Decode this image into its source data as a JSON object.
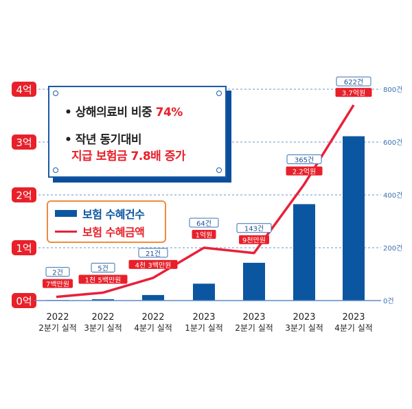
{
  "chart_data": {
    "type": "bar+line",
    "categories": [
      [
        "2022",
        "2분기 실적"
      ],
      [
        "2022",
        "3분기 실적"
      ],
      [
        "2022",
        "4분기 실적"
      ],
      [
        "2023",
        "1분기 실적"
      ],
      [
        "2023",
        "2분기 실적"
      ],
      [
        "2023",
        "3분기 실적"
      ],
      [
        "2023",
        "4분기 실적"
      ]
    ],
    "series": [
      {
        "name": "보험 수혜건수",
        "type": "bar",
        "axis": "right",
        "values": [
          2,
          5,
          21,
          64,
          143,
          365,
          622
        ],
        "labels": [
          "2건",
          "5건",
          "21건",
          "64건",
          "143건",
          "365건",
          "622건"
        ],
        "color": "#0b56a0"
      },
      {
        "name": "보험 수혜금액",
        "type": "line",
        "axis": "left",
        "values": [
          0.07,
          0.15,
          0.43,
          1.0,
          0.9,
          2.2,
          3.7
        ],
        "labels": [
          "7백만원",
          "1천 5백만원",
          "4천 3백만원",
          "1억원",
          "9천만원",
          "2.2억원",
          "3.7억원"
        ],
        "color": "#e8203a"
      }
    ],
    "left_axis": {
      "ylim": [
        0,
        4
      ],
      "ticks": [
        "0억",
        "1억",
        "2억",
        "3억",
        "4억"
      ]
    },
    "right_axis": {
      "ylim": [
        0,
        800
      ],
      "ticks": [
        "0건",
        "200건",
        "400건",
        "600건",
        "800건"
      ]
    },
    "grid": true,
    "legend_placement": "middle-left"
  },
  "callout": {
    "line1_prefix": "• 상해의료비 비중 ",
    "line1_value": "74%",
    "line2": "• 작년 동기대비",
    "line3": "지급 보험금 7.8배 증가"
  },
  "colors": {
    "blue": "#0b56a0",
    "red": "#e8202a",
    "orange": "#f08a3c"
  }
}
